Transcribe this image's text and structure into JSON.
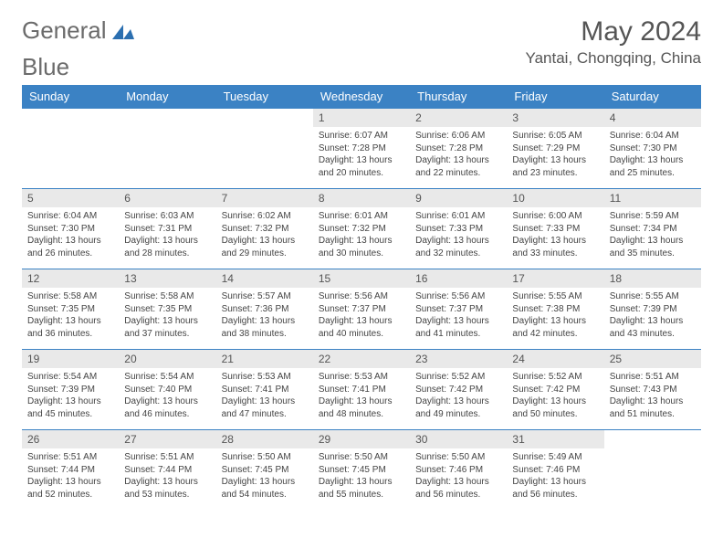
{
  "logo": {
    "text_a": "General",
    "text_b": "Blue",
    "icon_color": "#2b6fb0",
    "text_color": "#6b6b6b"
  },
  "title": {
    "month_year": "May 2024",
    "location": "Yantai, Chongqing, China"
  },
  "colors": {
    "header_bg": "#3b82c4",
    "header_fg": "#ffffff",
    "daynum_bg": "#e9e9e9",
    "daynum_fg": "#555555",
    "border": "#3b82c4",
    "body_text": "#444444"
  },
  "weekdays": [
    "Sunday",
    "Monday",
    "Tuesday",
    "Wednesday",
    "Thursday",
    "Friday",
    "Saturday"
  ],
  "labels": {
    "sunrise": "Sunrise:",
    "sunset": "Sunset:",
    "daylight_prefix": "Daylight:"
  },
  "weeks": [
    [
      null,
      null,
      null,
      {
        "d": "1",
        "sr": "6:07 AM",
        "ss": "7:28 PM",
        "dl": "13 hours and 20 minutes."
      },
      {
        "d": "2",
        "sr": "6:06 AM",
        "ss": "7:28 PM",
        "dl": "13 hours and 22 minutes."
      },
      {
        "d": "3",
        "sr": "6:05 AM",
        "ss": "7:29 PM",
        "dl": "13 hours and 23 minutes."
      },
      {
        "d": "4",
        "sr": "6:04 AM",
        "ss": "7:30 PM",
        "dl": "13 hours and 25 minutes."
      }
    ],
    [
      {
        "d": "5",
        "sr": "6:04 AM",
        "ss": "7:30 PM",
        "dl": "13 hours and 26 minutes."
      },
      {
        "d": "6",
        "sr": "6:03 AM",
        "ss": "7:31 PM",
        "dl": "13 hours and 28 minutes."
      },
      {
        "d": "7",
        "sr": "6:02 AM",
        "ss": "7:32 PM",
        "dl": "13 hours and 29 minutes."
      },
      {
        "d": "8",
        "sr": "6:01 AM",
        "ss": "7:32 PM",
        "dl": "13 hours and 30 minutes."
      },
      {
        "d": "9",
        "sr": "6:01 AM",
        "ss": "7:33 PM",
        "dl": "13 hours and 32 minutes."
      },
      {
        "d": "10",
        "sr": "6:00 AM",
        "ss": "7:33 PM",
        "dl": "13 hours and 33 minutes."
      },
      {
        "d": "11",
        "sr": "5:59 AM",
        "ss": "7:34 PM",
        "dl": "13 hours and 35 minutes."
      }
    ],
    [
      {
        "d": "12",
        "sr": "5:58 AM",
        "ss": "7:35 PM",
        "dl": "13 hours and 36 minutes."
      },
      {
        "d": "13",
        "sr": "5:58 AM",
        "ss": "7:35 PM",
        "dl": "13 hours and 37 minutes."
      },
      {
        "d": "14",
        "sr": "5:57 AM",
        "ss": "7:36 PM",
        "dl": "13 hours and 38 minutes."
      },
      {
        "d": "15",
        "sr": "5:56 AM",
        "ss": "7:37 PM",
        "dl": "13 hours and 40 minutes."
      },
      {
        "d": "16",
        "sr": "5:56 AM",
        "ss": "7:37 PM",
        "dl": "13 hours and 41 minutes."
      },
      {
        "d": "17",
        "sr": "5:55 AM",
        "ss": "7:38 PM",
        "dl": "13 hours and 42 minutes."
      },
      {
        "d": "18",
        "sr": "5:55 AM",
        "ss": "7:39 PM",
        "dl": "13 hours and 43 minutes."
      }
    ],
    [
      {
        "d": "19",
        "sr": "5:54 AM",
        "ss": "7:39 PM",
        "dl": "13 hours and 45 minutes."
      },
      {
        "d": "20",
        "sr": "5:54 AM",
        "ss": "7:40 PM",
        "dl": "13 hours and 46 minutes."
      },
      {
        "d": "21",
        "sr": "5:53 AM",
        "ss": "7:41 PM",
        "dl": "13 hours and 47 minutes."
      },
      {
        "d": "22",
        "sr": "5:53 AM",
        "ss": "7:41 PM",
        "dl": "13 hours and 48 minutes."
      },
      {
        "d": "23",
        "sr": "5:52 AM",
        "ss": "7:42 PM",
        "dl": "13 hours and 49 minutes."
      },
      {
        "d": "24",
        "sr": "5:52 AM",
        "ss": "7:42 PM",
        "dl": "13 hours and 50 minutes."
      },
      {
        "d": "25",
        "sr": "5:51 AM",
        "ss": "7:43 PM",
        "dl": "13 hours and 51 minutes."
      }
    ],
    [
      {
        "d": "26",
        "sr": "5:51 AM",
        "ss": "7:44 PM",
        "dl": "13 hours and 52 minutes."
      },
      {
        "d": "27",
        "sr": "5:51 AM",
        "ss": "7:44 PM",
        "dl": "13 hours and 53 minutes."
      },
      {
        "d": "28",
        "sr": "5:50 AM",
        "ss": "7:45 PM",
        "dl": "13 hours and 54 minutes."
      },
      {
        "d": "29",
        "sr": "5:50 AM",
        "ss": "7:45 PM",
        "dl": "13 hours and 55 minutes."
      },
      {
        "d": "30",
        "sr": "5:50 AM",
        "ss": "7:46 PM",
        "dl": "13 hours and 56 minutes."
      },
      {
        "d": "31",
        "sr": "5:49 AM",
        "ss": "7:46 PM",
        "dl": "13 hours and 56 minutes."
      },
      null
    ]
  ]
}
